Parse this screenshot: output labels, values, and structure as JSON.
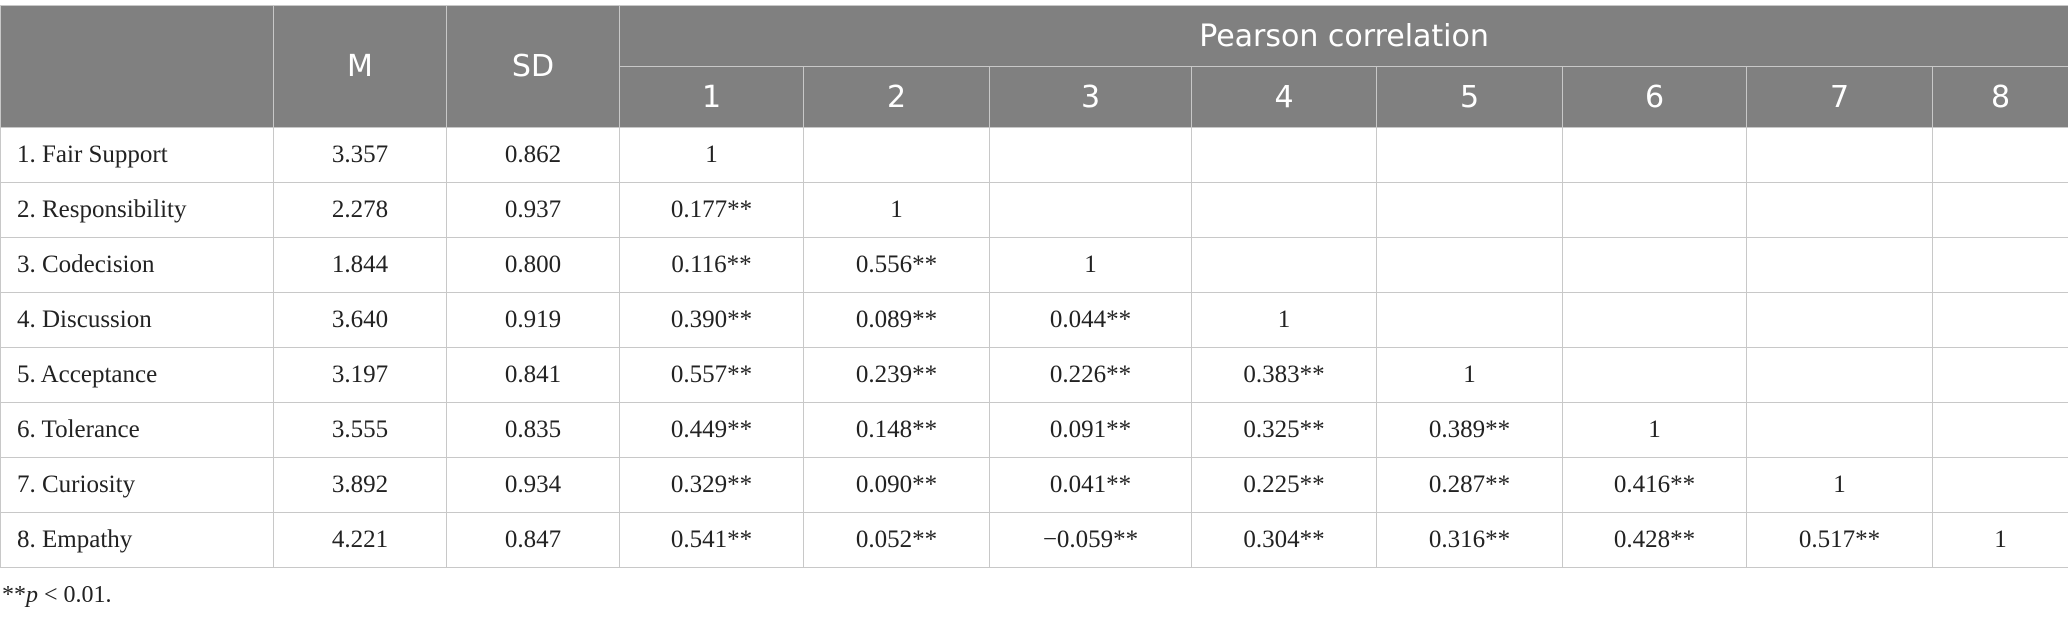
{
  "table": {
    "header": {
      "columns": [
        "M",
        "SD"
      ],
      "group": "Pearson correlation",
      "numbers": [
        "1",
        "2",
        "3",
        "4",
        "5",
        "6",
        "7",
        "8"
      ]
    },
    "rows": [
      {
        "label": "1. Fair Support",
        "m": "3.357",
        "sd": "0.862",
        "r": [
          "1"
        ]
      },
      {
        "label": "2. Responsibility",
        "m": "2.278",
        "sd": "0.937",
        "r": [
          "0.177**",
          "1"
        ]
      },
      {
        "label": "3. Codecision",
        "m": "1.844",
        "sd": "0.800",
        "r": [
          "0.116**",
          "0.556**",
          "1"
        ]
      },
      {
        "label": "4. Discussion",
        "m": "3.640",
        "sd": "0.919",
        "r": [
          "0.390**",
          "0.089**",
          "0.044**",
          "1"
        ]
      },
      {
        "label": "5. Acceptance",
        "m": "3.197",
        "sd": "0.841",
        "r": [
          "0.557**",
          "0.239**",
          "0.226**",
          "0.383**",
          "1"
        ]
      },
      {
        "label": "6. Tolerance",
        "m": "3.555",
        "sd": "0.835",
        "r": [
          "0.449**",
          "0.148**",
          "0.091**",
          "0.325**",
          "0.389**",
          "1"
        ]
      },
      {
        "label": "7. Curiosity",
        "m": "3.892",
        "sd": "0.934",
        "r": [
          "0.329**",
          "0.090**",
          "0.041**",
          "0.225**",
          "0.287**",
          "0.416**",
          "1"
        ]
      },
      {
        "label": "8. Empathy",
        "m": "4.221",
        "sd": "0.847",
        "r": [
          "0.541**",
          "0.052**",
          "−0.059**",
          "0.304**",
          "0.316**",
          "0.428**",
          "0.517**",
          "1"
        ]
      }
    ]
  },
  "footnote": {
    "prefix": "**",
    "italic": "p",
    "rest": "< 0.01."
  }
}
